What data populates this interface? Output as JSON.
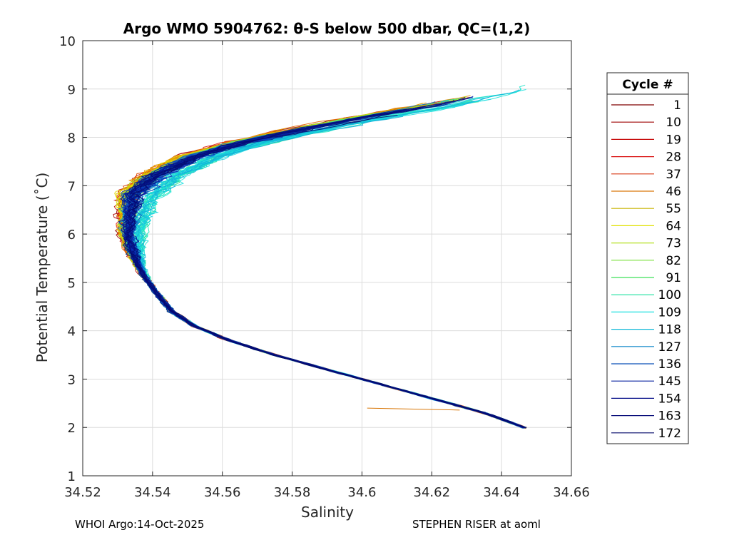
{
  "chart_data": {
    "type": "line",
    "title": "Argo WMO 5904762: θ-S below 500 dbar,  QC=(1,2)",
    "xlabel": "Salinity",
    "ylabel": "Potential Temperature (˚C)",
    "xlim": [
      34.52,
      34.66
    ],
    "ylim": [
      1,
      10
    ],
    "xticks": [
      "34.52",
      "34.54",
      "34.56",
      "34.58",
      "34.6",
      "34.62",
      "34.64",
      "34.66"
    ],
    "yticks": [
      "1",
      "2",
      "3",
      "4",
      "5",
      "6",
      "7",
      "8",
      "9",
      "10"
    ],
    "grid": true,
    "legend": {
      "title": "Cycle #",
      "position": "right",
      "entries": [
        {
          "label": "1",
          "color": "#800000"
        },
        {
          "label": "10",
          "color": "#9e0000"
        },
        {
          "label": "19",
          "color": "#c40000"
        },
        {
          "label": "28",
          "color": "#d91010"
        },
        {
          "label": "37",
          "color": "#d93a16"
        },
        {
          "label": "46",
          "color": "#d9780a"
        },
        {
          "label": "55",
          "color": "#c8b400"
        },
        {
          "label": "64",
          "color": "#e0e000"
        },
        {
          "label": "73",
          "color": "#b4e020"
        },
        {
          "label": "82",
          "color": "#7ae03a"
        },
        {
          "label": "91",
          "color": "#3ce058"
        },
        {
          "label": "100",
          "color": "#1ee0a0"
        },
        {
          "label": "109",
          "color": "#1ee0e0"
        },
        {
          "label": "118",
          "color": "#10b8d8"
        },
        {
          "label": "127",
          "color": "#0a86c8"
        },
        {
          "label": "136",
          "color": "#0a50b8"
        },
        {
          "label": "145",
          "color": "#0a24a0"
        },
        {
          "label": "154",
          "color": "#08108a"
        },
        {
          "label": "163",
          "color": "#060a78"
        },
        {
          "label": "172",
          "color": "#04086a"
        }
      ]
    },
    "series_shape": {
      "note": "Approximate theta-S envelope shared by all cycles (salinity, potential temperature)",
      "salinity": [
        34.6465,
        34.635,
        34.62,
        34.605,
        34.59,
        34.575,
        34.562,
        34.552,
        34.5455,
        34.541,
        34.537,
        34.5345,
        34.533,
        34.5335,
        34.535,
        34.541,
        34.552,
        34.566,
        34.582,
        34.6,
        34.62,
        34.64
      ],
      "theta": [
        2.0,
        2.3,
        2.6,
        2.9,
        3.2,
        3.5,
        3.8,
        4.1,
        4.4,
        4.8,
        5.2,
        5.6,
        6.0,
        6.4,
        6.8,
        7.2,
        7.6,
        7.9,
        8.15,
        8.4,
        8.65,
        8.95
      ]
    }
  },
  "footer": {
    "left": "WHOI Argo:14-Oct-2025",
    "right": "STEPHEN RISER at aoml"
  }
}
